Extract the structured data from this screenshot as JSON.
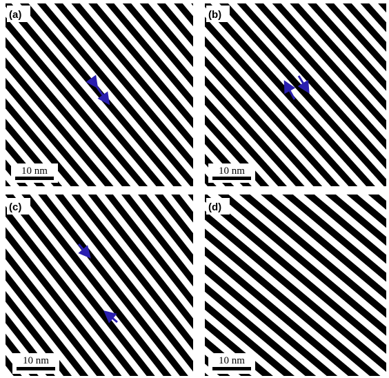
{
  "panels": [
    {
      "label": "(a)",
      "scale_bar": "10 nm"
    },
    {
      "label": "(b)",
      "scale_bar": "10 nm"
    },
    {
      "label": "(c)",
      "scale_bar": "10 nm"
    },
    {
      "label": "(d)",
      "scale_bar": "10 nm"
    }
  ]
}
